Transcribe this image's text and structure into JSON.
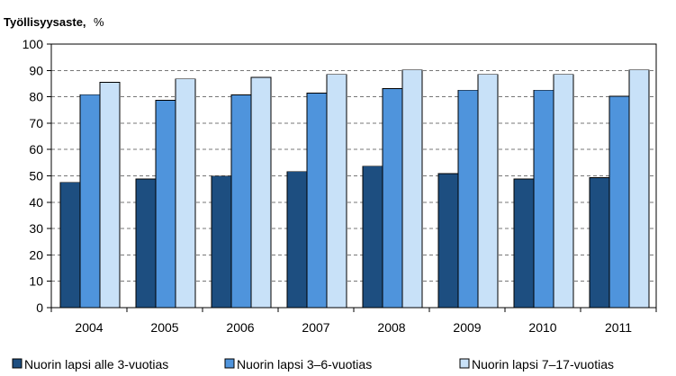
{
  "chart_data": {
    "type": "bar",
    "title": "Työllisyysaste,",
    "title_unit": "%",
    "categories": [
      "2004",
      "2005",
      "2006",
      "2007",
      "2008",
      "2009",
      "2010",
      "2011"
    ],
    "series": [
      {
        "name": "Nuorin lapsi alle 3-vuotias",
        "color": "#1d4e80",
        "values": [
          47.5,
          48.8,
          49.9,
          51.6,
          53.7,
          50.9,
          48.8,
          49.3
        ]
      },
      {
        "name": "Nuorin lapsi 3–6-vuotias",
        "color": "#4f94dc",
        "values": [
          80.8,
          78.7,
          80.7,
          81.4,
          83.1,
          82.5,
          82.5,
          80.2
        ]
      },
      {
        "name": "Nuorin lapsi 7–17-vuotias",
        "color": "#c8e1f8",
        "values": [
          85.5,
          86.8,
          87.4,
          88.5,
          90.2,
          88.5,
          88.5,
          90.2
        ]
      }
    ],
    "ylim": [
      0,
      100
    ],
    "yticks": [
      0,
      10,
      20,
      30,
      40,
      50,
      60,
      70,
      80,
      90,
      100
    ],
    "grid": "horizontal dashed",
    "legend": "bottom"
  }
}
